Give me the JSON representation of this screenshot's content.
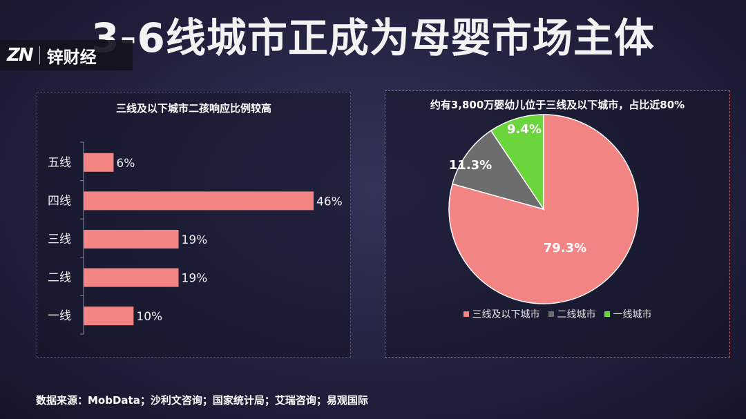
{
  "title": "3-6线城市正成为母婴市场主体",
  "logo": {
    "mark": "ZN",
    "name": "锌财经"
  },
  "colors": {
    "bar": "#f28583",
    "pie_main": "#f28583",
    "pie_gray": "#6d6d6d",
    "pie_green": "#6bd63c"
  },
  "source": "数据来源：MobData；沙利文咨询；国家统计局；艾瑞咨询；易观国际",
  "chart_data": [
    {
      "type": "bar",
      "orientation": "horizontal",
      "title": "三线及以下城市二孩响应比例较高",
      "categories": [
        "五线",
        "四线",
        "三线",
        "二线",
        "一线"
      ],
      "values": [
        6,
        46,
        19,
        19,
        10
      ],
      "value_labels": [
        "6%",
        "46%",
        "19%",
        "19%",
        "10%"
      ],
      "xlim": [
        0,
        50
      ],
      "grid": false
    },
    {
      "type": "pie",
      "title": "约有3,800万婴幼儿位于三线及以下城市，占比近80%",
      "labels": [
        "三线及以下城市",
        "二线城市",
        "一线城市"
      ],
      "values": [
        79.3,
        11.3,
        9.4
      ],
      "value_labels": [
        "79.3%",
        "11.3%",
        "9.4%"
      ],
      "colors": [
        "#f28583",
        "#6d6d6d",
        "#6bd63c"
      ],
      "legend": "bottom"
    }
  ]
}
